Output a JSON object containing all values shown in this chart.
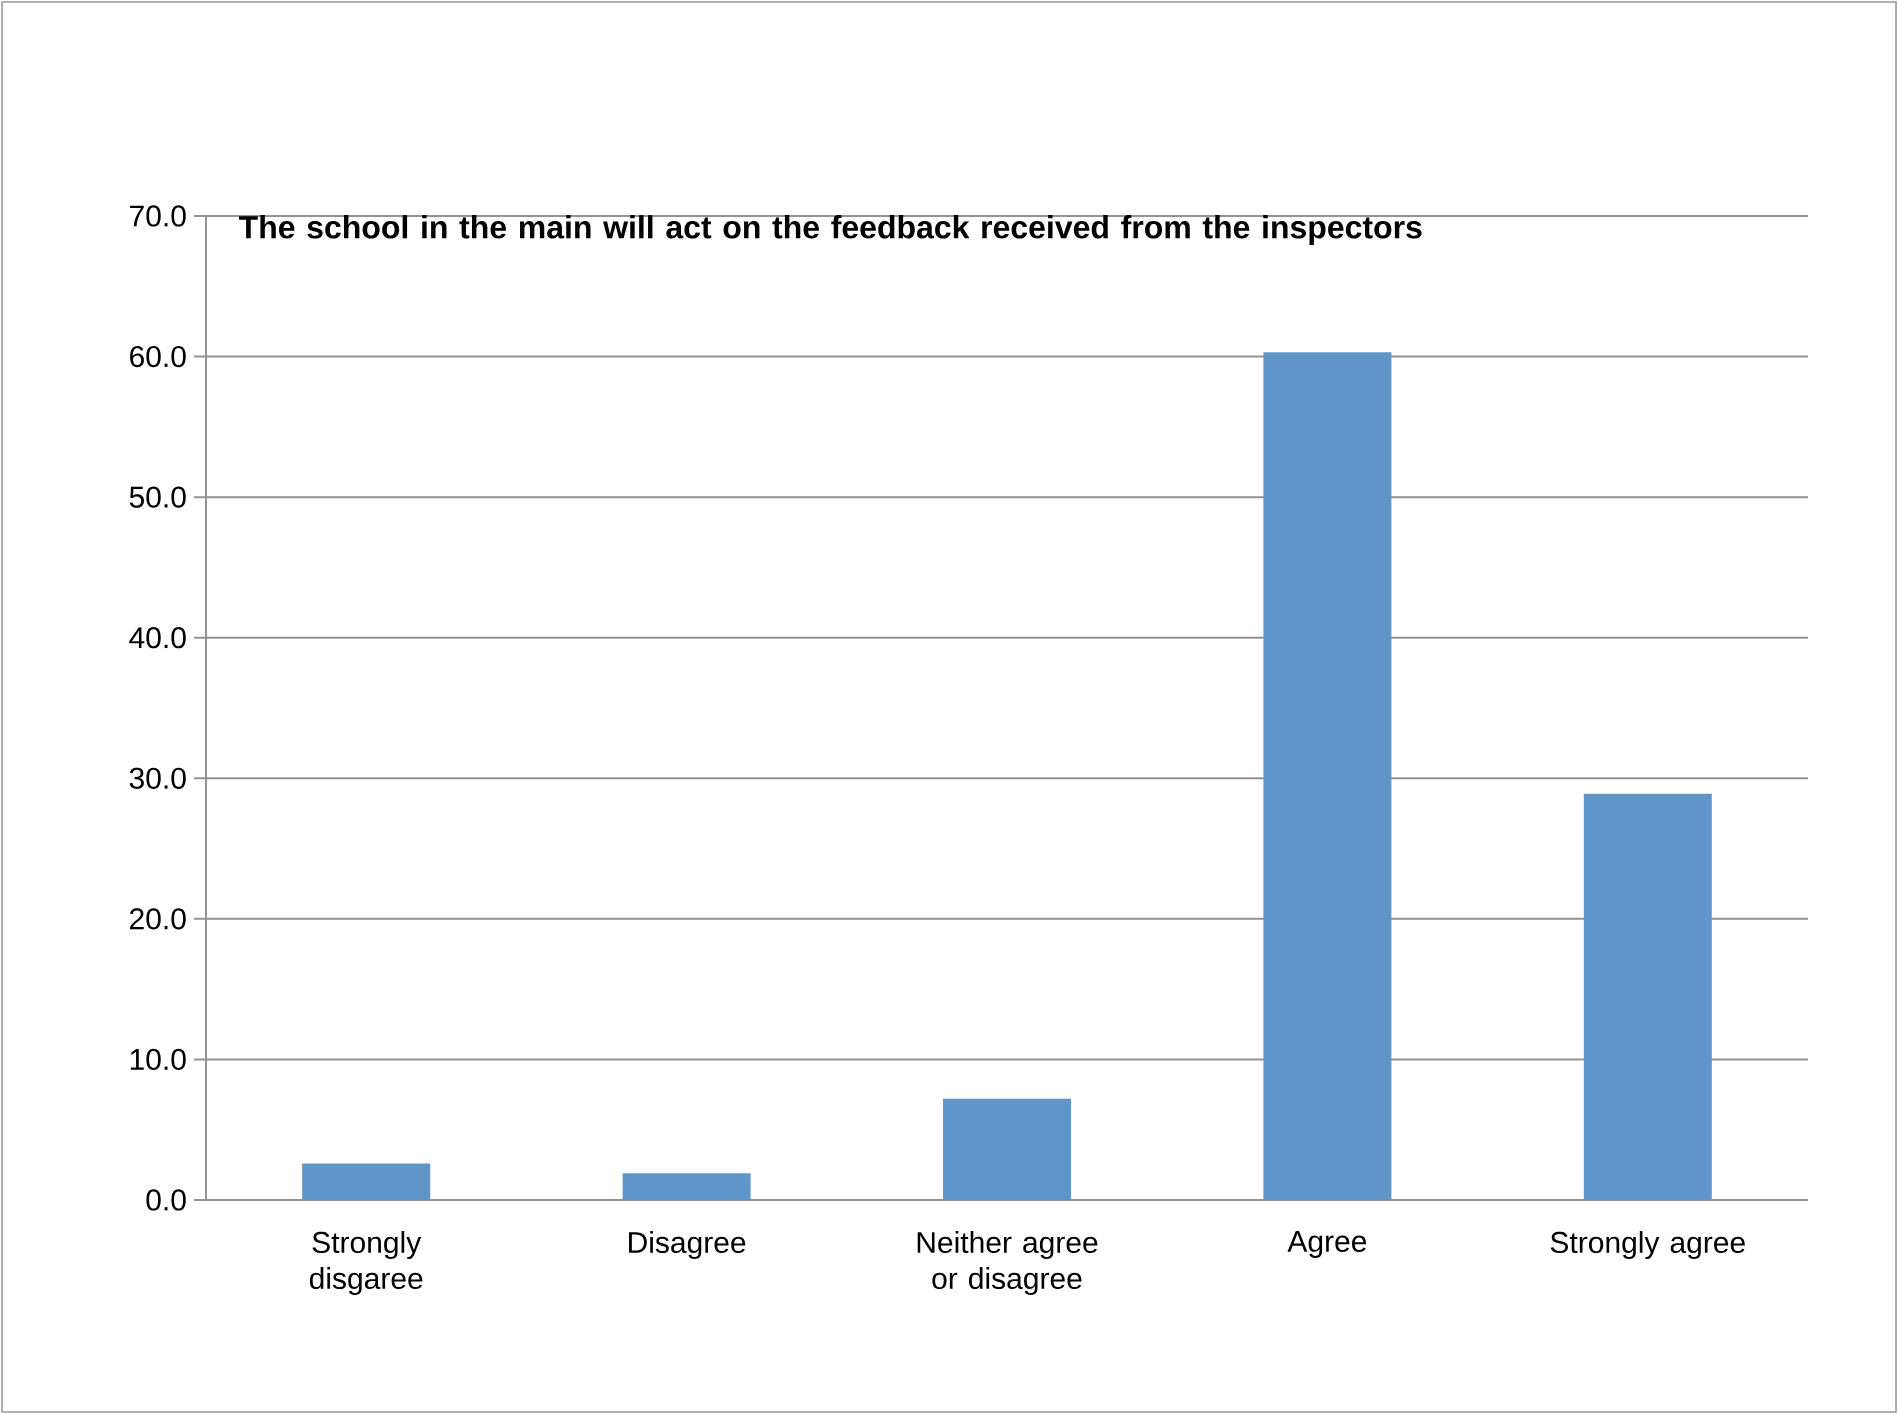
{
  "chart_data": {
    "type": "bar",
    "title": "The school in the main will act on the feedback received from the inspectors",
    "categories": [
      "Strongly disgaree",
      "Disagree",
      "Neither agree or disagree",
      "Agree",
      "Strongly agree"
    ],
    "values": [
      2.6,
      1.9,
      7.2,
      60.3,
      28.9
    ],
    "color": "#5f95c9",
    "ylim": [
      0,
      70
    ],
    "yticks": [
      {
        "value": 0,
        "label": "0.0"
      },
      {
        "value": 10,
        "label": "10.0"
      },
      {
        "value": 20,
        "label": "20.0"
      },
      {
        "value": 30,
        "label": "30.0"
      },
      {
        "value": 40,
        "label": "40.0"
      },
      {
        "value": 50,
        "label": "50.0"
      },
      {
        "value": 60,
        "label": "60.0"
      },
      {
        "value": 70,
        "label": "70.0"
      }
    ],
    "grid": "y"
  }
}
